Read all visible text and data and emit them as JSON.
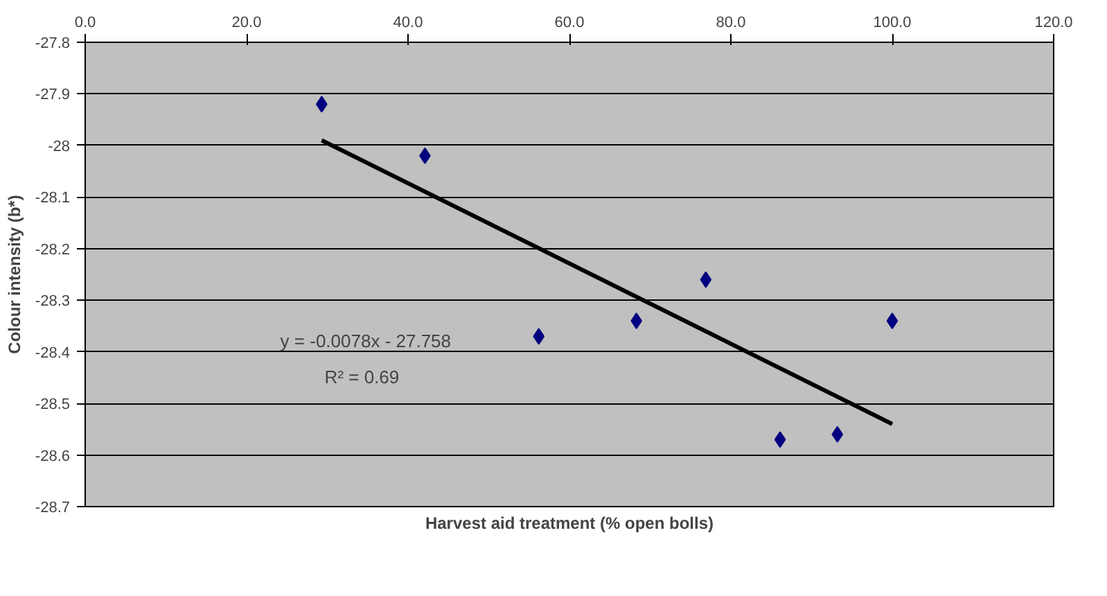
{
  "chart_data": {
    "type": "scatter",
    "xlabel": "Harvest aid treatment (% open bolls)",
    "ylabel": "Colour intensity (b*)",
    "series": [
      {
        "color": "#000080",
        "marker": "diamond",
        "x": [
          29.3,
          42.1,
          56.2,
          68.3,
          76.9,
          86.1,
          93.2,
          100.0
        ],
        "values": [
          -27.92,
          -28.02,
          -28.37,
          -28.34,
          -28.26,
          -28.57,
          -28.56,
          -28.34
        ]
      },
      {
        "type": "line",
        "color": "#000000",
        "line_style": "solid",
        "x": [
          29.3,
          100.0
        ],
        "values": [
          -27.99,
          -28.54
        ]
      }
    ],
    "xlim": [
      0,
      120
    ],
    "xticks": [
      {
        "value": 0,
        "label": "0.0"
      },
      {
        "value": 20,
        "label": "20.0"
      },
      {
        "value": 40,
        "label": "40.0"
      },
      {
        "value": 60,
        "label": "60.0"
      },
      {
        "value": 80,
        "label": "80.0"
      },
      {
        "value": 100,
        "label": "100.0"
      },
      {
        "value": 120,
        "label": "120.0"
      }
    ],
    "ylim": [
      -28.7,
      -27.8
    ],
    "yticks": [
      -27.8,
      -27.9,
      -28,
      -28.1,
      -28.2,
      -28.3,
      -28.4,
      -28.5,
      -28.6,
      -28.7
    ],
    "grid": "y",
    "annotations": [
      "y = -0.0078x - 27.758",
      "R² = 0.69"
    ]
  }
}
